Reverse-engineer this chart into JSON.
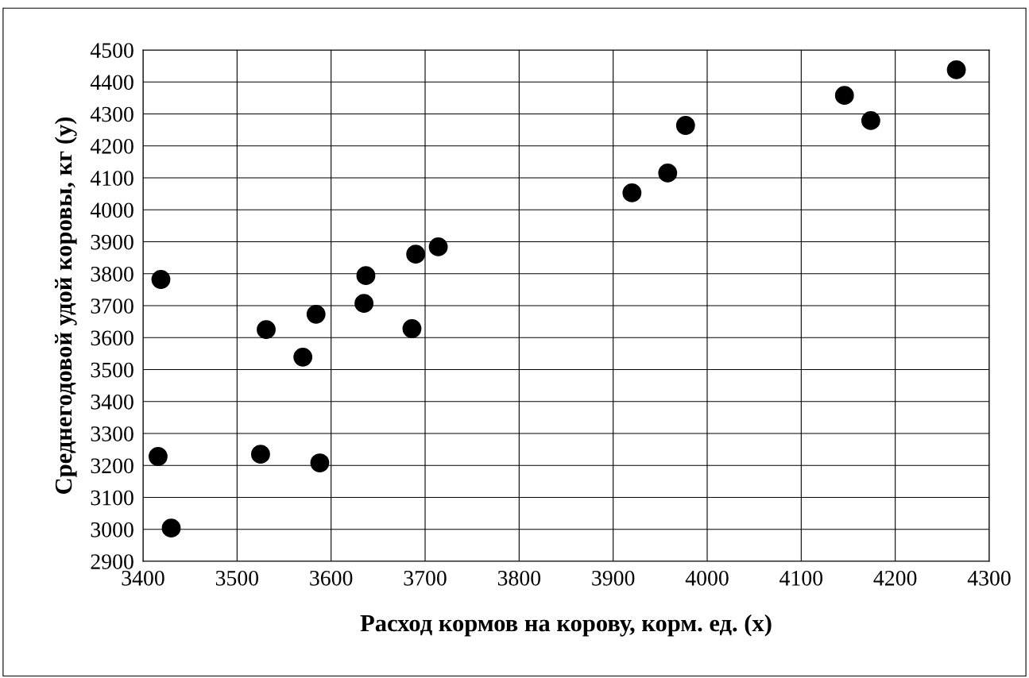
{
  "chart_data": {
    "type": "scatter",
    "xlabel": "Расход кормов на корову, корм. ед. (x)",
    "ylabel": "Среднегодовой удой коровы, кг (y)",
    "series": [
      {
        "color": "#000000",
        "x": [
          3419,
          3416,
          3430,
          3531,
          3525,
          3570,
          3584,
          3588,
          3637,
          3635,
          3686,
          3690,
          3714,
          3920,
          3958,
          3977,
          4146,
          4174,
          4265
        ],
        "values": [
          3782,
          3228,
          3004,
          3625,
          3235,
          3539,
          3673,
          3208,
          3794,
          3707,
          3628,
          3861,
          3884,
          4053,
          4115,
          4264,
          4358,
          4279,
          4438
        ]
      }
    ],
    "marker": "circle",
    "grid": true,
    "xlim": [
      3400,
      4300
    ],
    "xticks": [
      3400,
      3500,
      3600,
      3700,
      3800,
      3900,
      4000,
      4100,
      4200,
      4300
    ],
    "ylim": [
      2900,
      4500
    ],
    "yticks": [
      2900,
      3000,
      3100,
      3200,
      3300,
      3400,
      3500,
      3600,
      3700,
      3800,
      3900,
      4000,
      4100,
      4200,
      4300,
      4400,
      4500
    ]
  }
}
